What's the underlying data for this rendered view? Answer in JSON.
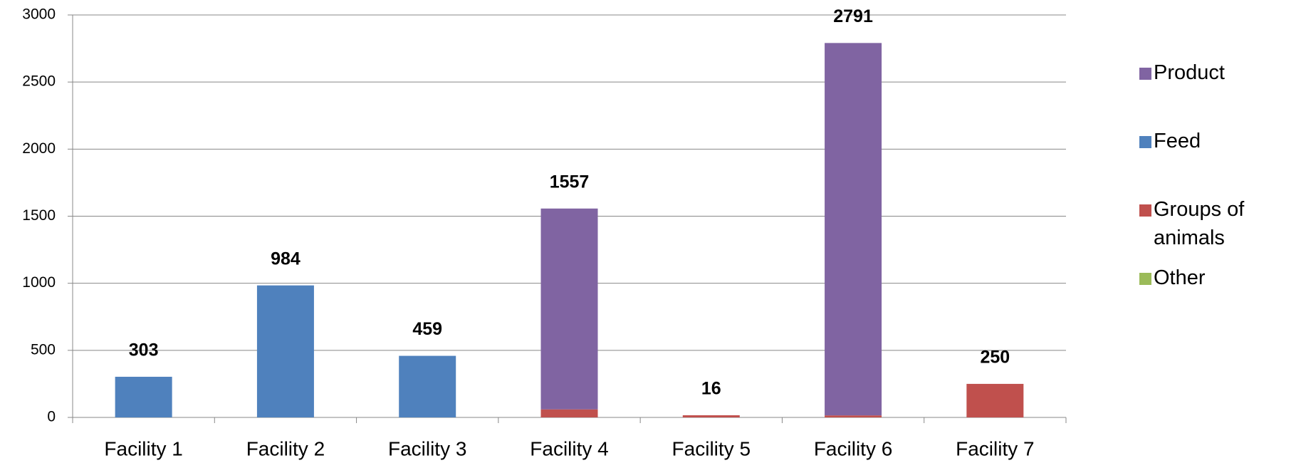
{
  "chart_data": {
    "type": "stacked_bar",
    "categories": [
      "Facility 1",
      "Facility 2",
      "Facility 3",
      "Facility 4",
      "Facility 5",
      "Facility 6",
      "Facility 7"
    ],
    "series": [
      {
        "name": "Other",
        "color": "#9bbb59",
        "values": [
          0,
          0,
          0,
          0,
          0,
          0,
          0
        ]
      },
      {
        "name": "Groups of animals",
        "color": "#c0504d",
        "values": [
          0,
          0,
          0,
          60,
          16,
          15,
          250
        ]
      },
      {
        "name": "Feed",
        "color": "#4f81bd",
        "values": [
          303,
          984,
          459,
          0,
          0,
          0,
          0
        ]
      },
      {
        "name": "Product",
        "color": "#8064a2",
        "values": [
          0,
          0,
          0,
          1497,
          0,
          2776,
          0
        ]
      }
    ],
    "totals": [
      303,
      984,
      459,
      1557,
      16,
      2791,
      250
    ],
    "ylim": [
      0,
      3000
    ],
    "yticks": [
      0,
      500,
      1000,
      1500,
      2000,
      2500,
      3000
    ],
    "grid": true,
    "legend": "right"
  }
}
